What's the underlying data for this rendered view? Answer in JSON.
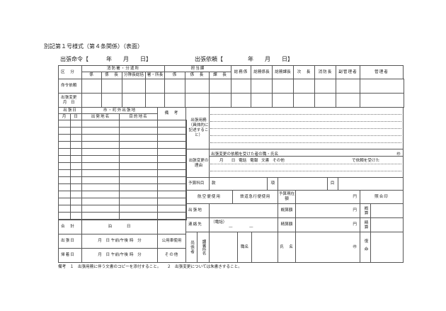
{
  "title": "別記第１号様式（第４条関係）（表面）",
  "order": {
    "label": "出張命令【",
    "date": "年　　月　　日】"
  },
  "request": {
    "label": "出張依頼【",
    "date": "年　　月　　日】"
  },
  "header": {
    "kubun": "区　分",
    "fire_station": "消防署・分遣所",
    "in_charge": "担当課",
    "kakari": "係",
    "kakaricho": "係　長",
    "buntai": "分隊長総括",
    "shocho": "署・所長",
    "kacho": "課　長",
    "somu": "総務係",
    "somucho": "総務係長",
    "somukacho": "総務課長",
    "jicho": "次　長",
    "shoboucho": "消防長",
    "fuku": "副管理者",
    "kanri": "管理者"
  },
  "rows": {
    "irai": "命令依頼",
    "henko": "出張変更\n月　日"
  },
  "trip": {
    "date": "出張日",
    "dest": "市・町外出張地",
    "month": "月",
    "day": "日",
    "from": "出発地名",
    "to": "目的地名",
    "remarks": "備　考"
  },
  "purpose": "出張用務（具体的に記述すること）",
  "change": {
    "label": "出張変更の理由",
    "receiver": "出張変更の依頼を受けた者の職・氏名",
    "seal": "㊞",
    "method": "月　　日 電話 電報 文書 その他",
    "received": "で依頼を受けた"
  },
  "budget": {
    "label": "予算科目",
    "kan": "款",
    "kou": "項",
    "moku": "目"
  },
  "air": "航空便使用",
  "rail": "鉄道急行便使用",
  "current": "予算現在額",
  "yen": "円",
  "check": "照合印",
  "place": "出張地",
  "estimate": "概算額",
  "est_short": "概算",
  "contact": "連絡先",
  "phone": "（電話）",
  "dash": "—",
  "settle": "精算額",
  "settle_short": "精算",
  "total": {
    "label": "合　計",
    "value": "泊　　　日"
  },
  "depart": {
    "label": "出張日",
    "time": "月　日 午前/午後 時　分",
    "car": "公用車使用"
  },
  "return": {
    "label": "帰着日",
    "time": "月　日 午前/午後 時　分",
    "other": "その他"
  },
  "traveler": "出張者",
  "dept": "課署所名",
  "post": "職名",
  "name": "氏　名",
  "report": "復命",
  "note": "備考　１　出張用務に伴う文書のコピーを添付すること。　　２　出張変更については朱書きすること。"
}
